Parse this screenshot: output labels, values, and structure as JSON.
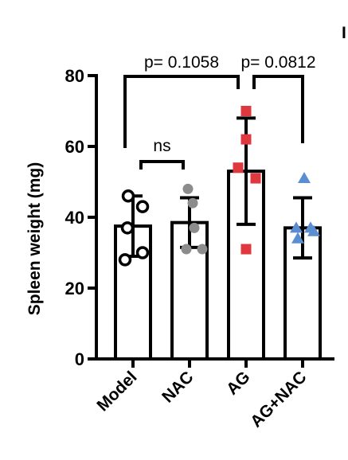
{
  "chart_data": {
    "type": "bar",
    "panel_letter": "I",
    "categories": [
      "Model",
      "NAC",
      "AG",
      "AG+NAC"
    ],
    "ylabel": "Spleen weight (mg)",
    "ylim": [
      0,
      80
    ],
    "yticks": [
      0,
      20,
      40,
      60,
      80
    ],
    "grid": false,
    "values": [
      37.5,
      38.5,
      53,
      37
    ],
    "sd": [
      8.5,
      7,
      15,
      8.5
    ],
    "points": [
      [
        46,
        43,
        37,
        30,
        28
      ],
      [
        48,
        44,
        37,
        31,
        31
      ],
      [
        70,
        62,
        54,
        51,
        31
      ],
      [
        51,
        37,
        37,
        36,
        34
      ]
    ],
    "markers": [
      {
        "shape": "open-circle",
        "color": "#000000"
      },
      {
        "shape": "filled-circle",
        "color": "#8c8c8c"
      },
      {
        "shape": "filled-square",
        "color": "#e0383f"
      },
      {
        "shape": "filled-triangle",
        "color": "#5b8ed1"
      }
    ],
    "comparisons": [
      {
        "from": 0,
        "to": 1,
        "label": "ns"
      },
      {
        "from": 0,
        "to": 2,
        "label": "p= 0.1058"
      },
      {
        "from": 2,
        "to": 3,
        "label": "p= 0.0812"
      }
    ]
  }
}
